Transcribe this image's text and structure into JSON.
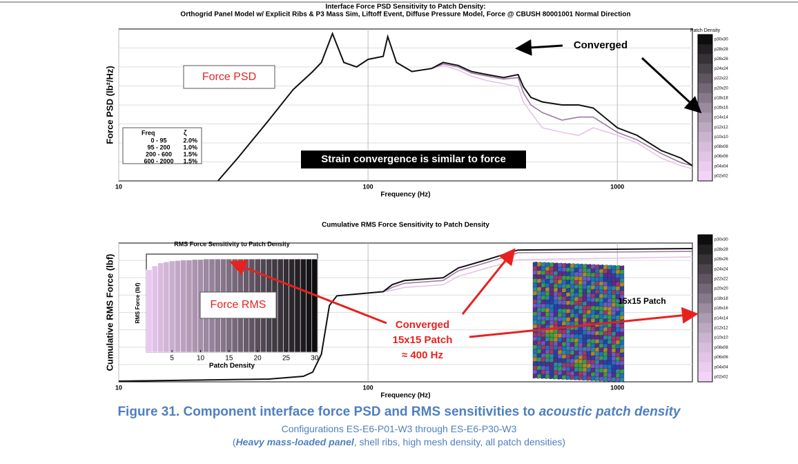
{
  "chart_data": [
    {
      "type": "line",
      "title": [
        "Interface Force PSD Sensitivity to Patch Density:",
        "Orthogrid Panel Model w/ Explicit Ribs & P3 Mass Sim, Liftoff Event, Diffuse Pressure Model, Force @ CBUSH 80001001 Normal Direction"
      ],
      "x_label": "Frequency (Hz)",
      "y_label": "Force PSD (lb²/Hz)",
      "log_x": true,
      "xlim": [
        10,
        2000
      ],
      "xticks": [
        10,
        100,
        1000
      ],
      "ylim": [
        0,
        100
      ],
      "x": [
        25,
        30,
        40,
        50,
        60,
        65,
        72,
        80,
        90,
        100,
        115,
        120,
        130,
        150,
        180,
        200,
        230,
        260,
        300,
        350,
        400,
        420,
        450,
        500,
        600,
        700,
        800,
        1000,
        1200,
        1500,
        1800,
        2000
      ],
      "series": [
        {
          "name": "p02x02",
          "color": "#e6c3e6",
          "values": [
            0,
            15,
            40,
            60,
            72,
            78,
            97,
            78,
            75,
            80,
            82,
            95,
            78,
            72,
            74,
            76,
            73,
            69,
            66,
            64,
            62,
            52,
            45,
            35,
            32,
            30,
            35,
            30,
            25,
            15,
            10,
            8
          ]
        },
        {
          "name": "p16x16",
          "color": "#9c7aa0",
          "values": [
            0,
            15,
            40,
            60,
            72,
            78,
            97,
            78,
            75,
            80,
            82,
            95,
            78,
            72,
            74,
            77,
            75,
            71,
            69,
            67,
            68,
            58,
            50,
            45,
            40,
            42,
            42,
            32,
            27,
            18,
            12,
            10
          ]
        },
        {
          "name": "p30x30",
          "color": "#111111",
          "values": [
            0,
            15,
            40,
            60,
            72,
            78,
            97,
            78,
            75,
            80,
            82,
            95,
            78,
            72,
            74,
            78,
            76,
            72,
            70,
            68,
            70,
            62,
            55,
            52,
            50,
            50,
            48,
            35,
            30,
            20,
            15,
            10
          ]
        }
      ],
      "colorbar": {
        "title": "Patch Density",
        "labels": [
          "p30x30",
          "p28x28",
          "p26x26",
          "p24x24",
          "p22x22",
          "p20x20",
          "p18x18",
          "p16x16",
          "p14x14",
          "p12x12",
          "p10x10",
          "p08x08",
          "p06x06",
          "p04x04",
          "p02x02"
        ],
        "colors": [
          "#0d0d0d",
          "#222022",
          "#363236",
          "#4a444b",
          "#5e5560",
          "#726775",
          "#867a8a",
          "#9a8c9e",
          "#ab9cb0",
          "#bba9c0",
          "#c9b4cf",
          "#d6bedb",
          "#e0c6e5",
          "#ebcdee",
          "#f3d4f6"
        ]
      },
      "annotations": [
        "Force PSD",
        "Converged",
        "Strain convergence is similar to force"
      ],
      "damping_table": {
        "headers": [
          "Freq",
          "ζ"
        ],
        "rows": [
          [
            "0  -  95",
            "2.0%"
          ],
          [
            "95  -  200",
            "1.0%"
          ],
          [
            "200  -  600",
            "1.5%"
          ],
          [
            "600  -  2000",
            "1.5%"
          ]
        ]
      }
    },
    {
      "type": "line",
      "title": "Cumulative RMS Force Sensitivity to Patch Density",
      "x_label": "Frequency (Hz)",
      "y_label": "Cumulative RMS Force (lbf)",
      "log_x": true,
      "xlim": [
        10,
        2000
      ],
      "xticks": [
        10,
        100,
        1000
      ],
      "ylim": [
        0,
        100
      ],
      "x": [
        10,
        40,
        55,
        60,
        65,
        70,
        75,
        100,
        115,
        125,
        140,
        200,
        230,
        300,
        400,
        2000
      ],
      "series": [
        {
          "name": "p02x02",
          "color": "#e6c3e6",
          "values": [
            0.5,
            2,
            4,
            7,
            20,
            55,
            62,
            64,
            65,
            66,
            68,
            70,
            76,
            82,
            88,
            90
          ]
        },
        {
          "name": "p16x16",
          "color": "#9c7aa0",
          "values": [
            0.5,
            2,
            4,
            7,
            20,
            55,
            62,
            64,
            65,
            68,
            71,
            73,
            80,
            86,
            93,
            94
          ]
        },
        {
          "name": "p30x30",
          "color": "#111111",
          "values": [
            0.5,
            2,
            4,
            7,
            20,
            55,
            62,
            64,
            65,
            70,
            73,
            75,
            82,
            88,
            95,
            96
          ]
        }
      ],
      "colorbar": {
        "labels": [
          "p30x30",
          "p28x28",
          "p26x26",
          "p24x24",
          "p22x22",
          "p20x20",
          "p18x18",
          "p16x16",
          "p14x14",
          "p12x12",
          "p10x10",
          "p08x08",
          "p06x06",
          "p04x04",
          "p02x02"
        ],
        "colors": [
          "#0d0d0d",
          "#222022",
          "#363236",
          "#4a444b",
          "#5e5560",
          "#726775",
          "#867a8a",
          "#9a8c9e",
          "#ab9cb0",
          "#bba9c0",
          "#c9b4cf",
          "#d6bedb",
          "#e0c6e5",
          "#ebcdee",
          "#f3d4f6"
        ]
      },
      "annotations": [
        "Force RMS",
        "Converged",
        "15x15 Patch",
        "≈ 400 Hz",
        "15x15 Patch"
      ]
    },
    {
      "type": "bar",
      "title": "RMS Force Sensitivity to Patch Density",
      "x_label": "Patch Density",
      "y_label": "RMS Force (lbf)",
      "x": [
        1,
        2,
        3,
        4,
        5,
        6,
        7,
        8,
        9,
        10,
        11,
        12,
        13,
        14,
        15,
        16,
        17,
        18,
        19,
        20,
        21,
        22,
        23,
        24,
        25,
        26,
        27,
        28,
        29,
        30
      ],
      "values": [
        84,
        88,
        91,
        92,
        93,
        93.5,
        94,
        94,
        94.5,
        94.5,
        95,
        95,
        95,
        95,
        95,
        95,
        95,
        95,
        95,
        95,
        95,
        95,
        95,
        95,
        95,
        95,
        95,
        95,
        95,
        95
      ],
      "xlim": [
        0.5,
        30.5
      ],
      "xticks": [
        5,
        10,
        15,
        20,
        25,
        30
      ],
      "ylim": [
        0,
        100
      ],
      "color_start": "#e8c8ee",
      "color_end": "#0d0d0d"
    }
  ],
  "caption": {
    "title": "Figure 31. Component interface force PSD and RMS sensitivities to ",
    "title_italic": "acoustic patch density",
    "line2": "Configurations ES-E6-P01-W3 through ES-E6-P30-W3",
    "line3_open": "(",
    "line3_bold": "Heavy mass-loaded panel",
    "line3_rest": ", shell ribs, high mesh density, all patch densities)"
  }
}
